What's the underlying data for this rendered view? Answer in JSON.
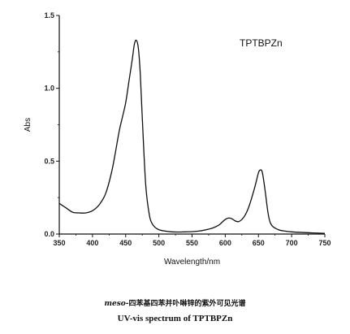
{
  "chart_data": {
    "type": "line",
    "title": "",
    "xlabel": "Wavelength/nm",
    "ylabel": "Abs",
    "xlim": [
      350,
      750
    ],
    "ylim": [
      0.0,
      1.5
    ],
    "x_ticks": [
      350,
      400,
      450,
      500,
      550,
      600,
      650,
      700,
      750
    ],
    "y_ticks": [
      0.0,
      0.5,
      1.0,
      1.5
    ],
    "x_tick_labels": [
      "350",
      "400",
      "450",
      "500",
      "550",
      "600",
      "650",
      "700",
      "750"
    ],
    "y_tick_labels": [
      "0.0",
      "0.5",
      "1.0",
      "1.5"
    ],
    "grid": false,
    "legend_position": "top-right",
    "series": [
      {
        "name": "TPTBPZn",
        "color": "#111111",
        "x": [
          350,
          360,
          370,
          380,
          390,
          400,
          410,
          420,
          430,
          440,
          445,
          450,
          455,
          460,
          463,
          466,
          469,
          472,
          475,
          480,
          485,
          490,
          500,
          520,
          540,
          560,
          580,
          590,
          595,
          600,
          605,
          610,
          615,
          620,
          625,
          630,
          635,
          640,
          645,
          650,
          653,
          656,
          660,
          665,
          670,
          680,
          690,
          700,
          720,
          750
        ],
        "y": [
          0.21,
          0.18,
          0.15,
          0.145,
          0.145,
          0.16,
          0.2,
          0.28,
          0.45,
          0.7,
          0.8,
          0.9,
          1.05,
          1.2,
          1.3,
          1.33,
          1.28,
          1.1,
          0.8,
          0.35,
          0.15,
          0.07,
          0.03,
          0.015,
          0.015,
          0.02,
          0.04,
          0.06,
          0.08,
          0.1,
          0.11,
          0.105,
          0.09,
          0.085,
          0.1,
          0.13,
          0.18,
          0.25,
          0.33,
          0.42,
          0.44,
          0.42,
          0.3,
          0.13,
          0.06,
          0.03,
          0.02,
          0.015,
          0.01,
          0.005
        ]
      }
    ]
  },
  "caption": {
    "cn_prefix": "meso-",
    "cn_text": "四苯基四苯并卟啉锌的紫外可见光谱",
    "en_text": "UV-vis spectrum of TPTBPZn"
  }
}
